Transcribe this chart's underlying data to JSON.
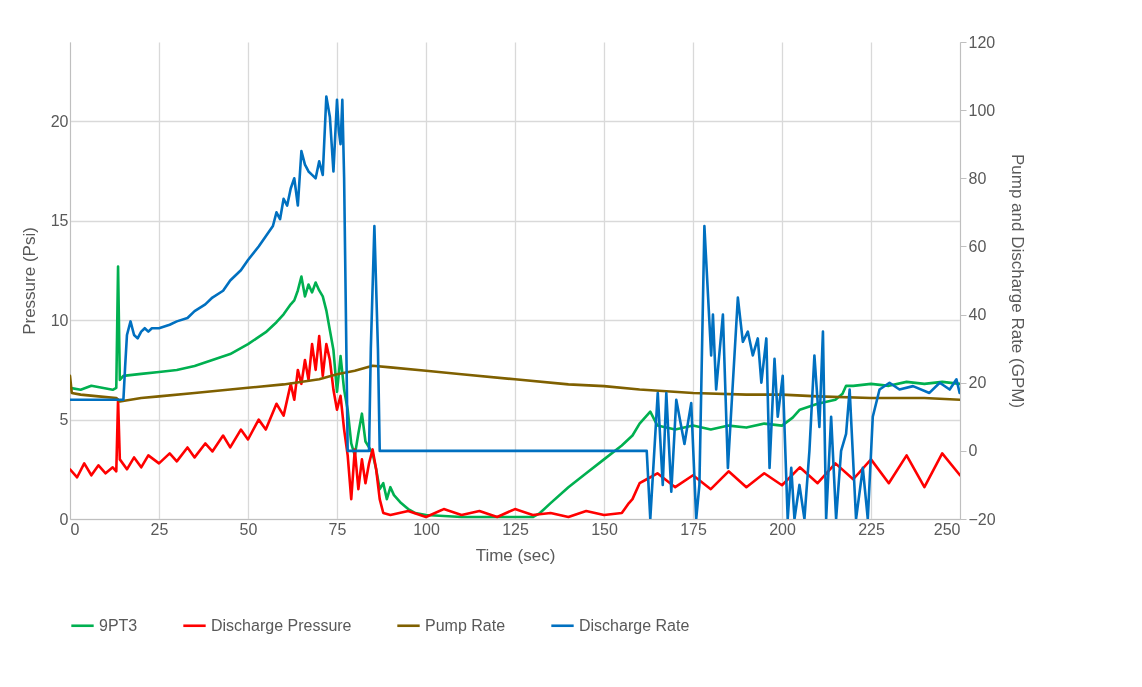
{
  "chart_data": {
    "type": "line",
    "xlabel": "Time (sec)",
    "ylabel": "Pressure (Psi)",
    "y2label": "Pump and Discharge Rate (GPM)",
    "xlim": [
      0,
      250
    ],
    "xticks": [
      0,
      25,
      50,
      75,
      100,
      125,
      150,
      175,
      200,
      225,
      250
    ],
    "ylim": [
      0,
      24
    ],
    "yticks": [
      0,
      5,
      10,
      15,
      20
    ],
    "y2lim": [
      -20,
      120
    ],
    "y2ticks": [
      -20,
      0,
      20,
      40,
      60,
      80,
      100,
      120
    ],
    "grid": true,
    "legend": "bottom",
    "marker": "none",
    "line_style": "solid",
    "series": [
      {
        "name": "9PT3",
        "color": "#00b050",
        "x": [
          0,
          3,
          6,
          9,
          12,
          13,
          13.5,
          14,
          15,
          20,
          25,
          30,
          35,
          40,
          45,
          50,
          55,
          58,
          60,
          62,
          63,
          64,
          65,
          66,
          67,
          68,
          69,
          70,
          71,
          72,
          73,
          74,
          75,
          76,
          77,
          78,
          79,
          80,
          81,
          82,
          83,
          84,
          85,
          86,
          87,
          88,
          89,
          90,
          91,
          93,
          95,
          97,
          100,
          110,
          120,
          130,
          132,
          135,
          140,
          145,
          150,
          155,
          158,
          160,
          162,
          163,
          165,
          170,
          175,
          180,
          185,
          190,
          195,
          200,
          203,
          205,
          210,
          215,
          217,
          218,
          220,
          225,
          230,
          235,
          240,
          245,
          250
        ],
        "values": [
          6.6,
          6.5,
          6.7,
          6.6,
          6.5,
          6.6,
          12.7,
          7.0,
          7.2,
          7.3,
          7.4,
          7.5,
          7.7,
          8.0,
          8.3,
          8.8,
          9.4,
          9.9,
          10.3,
          10.8,
          11.0,
          11.5,
          12.2,
          11.2,
          11.8,
          11.4,
          11.9,
          11.5,
          11.2,
          10.5,
          9.5,
          8.5,
          6.4,
          8.2,
          6.5,
          5.5,
          3.8,
          3.2,
          4.3,
          5.3,
          3.9,
          3.6,
          3.3,
          2.5,
          1.5,
          1.8,
          1.0,
          1.6,
          1.2,
          0.8,
          0.5,
          0.3,
          0.2,
          0.1,
          0.1,
          0.1,
          0.3,
          0.8,
          1.6,
          2.3,
          3.0,
          3.7,
          4.2,
          4.8,
          5.2,
          5.4,
          4.7,
          4.5,
          4.7,
          4.5,
          4.7,
          4.6,
          4.8,
          4.7,
          5.1,
          5.5,
          5.8,
          6.0,
          6.3,
          6.7,
          6.7,
          6.8,
          6.7,
          6.9,
          6.8,
          6.9,
          6.8
        ]
      },
      {
        "name": "Discharge Pressure",
        "color": "#ff0000",
        "x": [
          0,
          2,
          4,
          6,
          8,
          10,
          12,
          13,
          13.5,
          14,
          16,
          18,
          20,
          22,
          25,
          28,
          30,
          33,
          35,
          38,
          40,
          43,
          45,
          48,
          50,
          53,
          55,
          58,
          60,
          62,
          63,
          64,
          65,
          66,
          67,
          68,
          69,
          70,
          71,
          72,
          73,
          74,
          75,
          76,
          77,
          78,
          79,
          80,
          81,
          82,
          83,
          84,
          85,
          86,
          87,
          88,
          90,
          95,
          100,
          105,
          110,
          115,
          120,
          125,
          130,
          135,
          140,
          145,
          150,
          155,
          157,
          158,
          160,
          162,
          165,
          170,
          175,
          180,
          185,
          190,
          195,
          200,
          205,
          210,
          215,
          220,
          225,
          230,
          235,
          240,
          245,
          250
        ],
        "values": [
          2.5,
          2.1,
          2.8,
          2.2,
          2.7,
          2.3,
          2.6,
          2.4,
          6.0,
          3.0,
          2.5,
          3.1,
          2.6,
          3.2,
          2.8,
          3.3,
          2.9,
          3.6,
          3.1,
          3.8,
          3.4,
          4.2,
          3.6,
          4.5,
          4.0,
          5.0,
          4.5,
          5.8,
          5.2,
          6.8,
          6.0,
          7.5,
          6.8,
          8.0,
          7.0,
          8.8,
          7.5,
          9.2,
          7.2,
          8.8,
          8.0,
          6.5,
          5.5,
          6.2,
          4.5,
          3.2,
          1.0,
          3.5,
          1.5,
          3.0,
          1.8,
          2.8,
          3.5,
          2.5,
          1.0,
          0.3,
          0.2,
          0.4,
          0.1,
          0.5,
          0.2,
          0.4,
          0.1,
          0.5,
          0.2,
          0.3,
          0.1,
          0.4,
          0.2,
          0.3,
          0.8,
          1.0,
          1.8,
          2.0,
          2.3,
          1.6,
          2.2,
          1.5,
          2.4,
          1.6,
          2.3,
          1.7,
          2.6,
          1.8,
          2.8,
          2.0,
          3.0,
          1.8,
          3.2,
          1.6,
          3.3,
          2.2
        ]
      },
      {
        "name": "Pump Rate",
        "color": "#7f6000",
        "axis": "y2",
        "x": [
          0,
          0.5,
          3,
          8,
          13,
          14,
          20,
          25,
          35,
          45,
          50,
          60,
          70,
          75,
          80,
          85,
          90,
          100,
          110,
          125,
          140,
          150,
          160,
          175,
          190,
          200,
          210,
          225,
          240,
          250
        ],
        "values": [
          22,
          17,
          16.5,
          16,
          15.5,
          14.5,
          15.5,
          16,
          17,
          18,
          18.5,
          19.5,
          21,
          22.5,
          23.5,
          25,
          24.5,
          23.5,
          22.5,
          21,
          19.5,
          19,
          18,
          17,
          16.5,
          16.5,
          16,
          15.5,
          15.5,
          15
        ]
      },
      {
        "name": "Discharge Rate",
        "color": "#0070c0",
        "axis": "y2",
        "x": [
          0,
          5,
          10,
          14,
          15,
          15.5,
          16,
          17,
          18,
          19,
          20,
          21,
          22,
          23,
          25,
          28,
          30,
          33,
          35,
          38,
          40,
          43,
          45,
          48,
          50,
          53,
          55,
          57,
          58,
          59,
          60,
          61,
          62,
          63,
          64,
          65,
          66,
          67,
          68,
          69,
          70,
          71,
          72,
          73,
          74,
          75,
          75.5,
          76,
          76.5,
          77,
          78,
          84,
          84.5,
          85.5,
          86.5,
          87,
          100,
          125,
          150,
          162,
          163,
          165.1,
          166.5,
          167.5,
          168.9,
          170.3,
          172.6,
          174.5,
          175.9,
          176.8,
          178.2,
          180.1,
          180.6,
          181.5,
          183.4,
          184.8,
          186.2,
          187.6,
          189.0,
          190.4,
          191.8,
          193.2,
          194.2,
          195.6,
          196.5,
          197.9,
          198.8,
          200.2,
          201.6,
          202.6,
          203.5,
          204.9,
          206.3,
          207.7,
          209.1,
          210.5,
          211.5,
          212.4,
          213.8,
          215.2,
          216.6,
          218.0,
          219.0,
          220.8,
          222.7,
          224.1,
          225.5,
          227.4,
          230.2,
          233.0,
          236.8,
          241.4,
          244.3,
          247.1,
          249.0,
          249.9
        ],
        "values": [
          15,
          15,
          15,
          15,
          15,
          25,
          34,
          38,
          34,
          33,
          35,
          36,
          35,
          36,
          36,
          37,
          38,
          39,
          41,
          43,
          45,
          47,
          50,
          53,
          56,
          60,
          63,
          66,
          70,
          68,
          74,
          72,
          77,
          80,
          72,
          88,
          84,
          82,
          81,
          80,
          85,
          81,
          104,
          98,
          82,
          103,
          94,
          90,
          103,
          80,
          0,
          0,
          30,
          66,
          30,
          0,
          0,
          0,
          0,
          0,
          -20,
          17,
          -10,
          17,
          -12,
          15,
          2,
          14,
          -20,
          -10,
          66,
          28,
          40,
          18,
          40,
          -5,
          20,
          45,
          32,
          35,
          28,
          33,
          20,
          33,
          -5,
          27,
          10,
          22,
          -20,
          -5,
          -20,
          -10,
          -20,
          0,
          28,
          7,
          35,
          -20,
          10,
          -20,
          0,
          5,
          18,
          -20,
          -5,
          -20,
          10,
          18,
          20,
          18,
          19,
          17,
          20,
          18,
          21,
          17
        ]
      }
    ]
  }
}
